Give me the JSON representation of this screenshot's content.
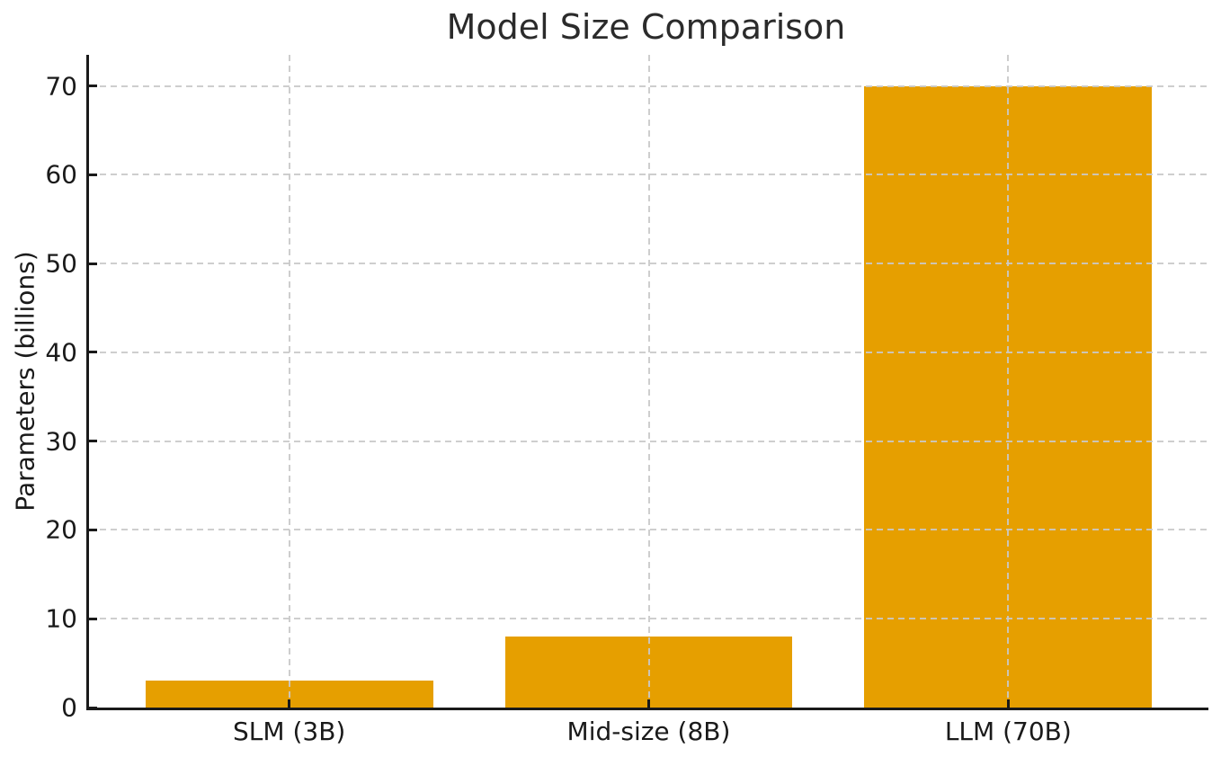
{
  "chart_data": {
    "type": "bar",
    "title": "Model Size Comparison",
    "xlabel": "",
    "ylabel": "Parameters (billions)",
    "categories": [
      "SLM (3B)",
      "Mid-size (8B)",
      "LLM (70B)"
    ],
    "values": [
      3,
      8,
      70
    ],
    "yticks": [
      0,
      10,
      20,
      30,
      40,
      50,
      60,
      70
    ],
    "ylim": [
      0,
      73.5
    ],
    "bar_width_fraction": 0.8,
    "grid": true,
    "grid_style": "dashed",
    "legend": "none",
    "colors": {
      "bar": "#E69F00",
      "grid": "#c9c9c9",
      "spine": "#1a1a1a",
      "tick_text": "#1a1a1a",
      "title_text": "#2b2b2b",
      "background": "#ffffff"
    }
  }
}
